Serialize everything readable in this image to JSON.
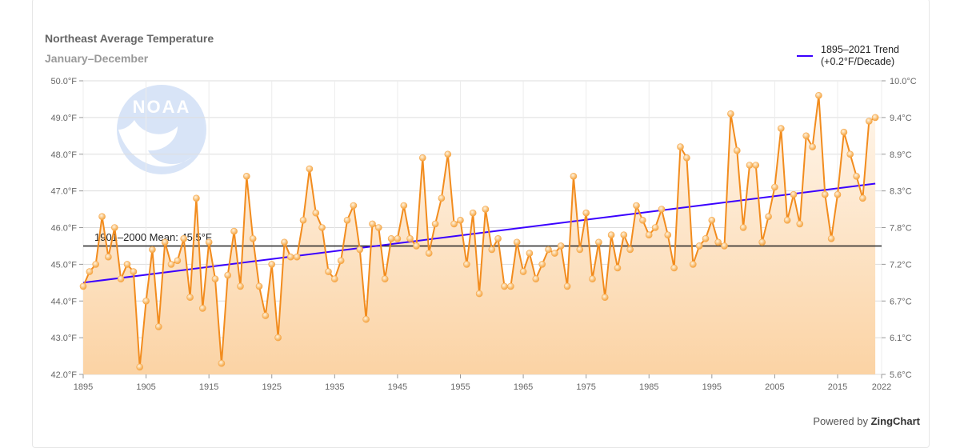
{
  "title": "Northeast Average Temperature",
  "subtitle": "January–December",
  "legend": {
    "line1": "1895–2021 Trend",
    "line2": "(+0.2°F/Decade)",
    "color": "#3a00ff"
  },
  "credit": {
    "prefix": "Powered by",
    "brand": "ZingChart"
  },
  "mean_label": "1901–2000 Mean: 45.5°F",
  "chart_data": {
    "type": "line",
    "title": "Northeast Average Temperature",
    "subtitle": "January–December",
    "x": [
      1895,
      1896,
      1897,
      1898,
      1899,
      1900,
      1901,
      1902,
      1903,
      1904,
      1905,
      1906,
      1907,
      1908,
      1909,
      1910,
      1911,
      1912,
      1913,
      1914,
      1915,
      1916,
      1917,
      1918,
      1919,
      1920,
      1921,
      1922,
      1923,
      1924,
      1925,
      1926,
      1927,
      1928,
      1929,
      1930,
      1931,
      1932,
      1933,
      1934,
      1935,
      1936,
      1937,
      1938,
      1939,
      1940,
      1941,
      1942,
      1943,
      1944,
      1945,
      1946,
      1947,
      1948,
      1949,
      1950,
      1951,
      1952,
      1953,
      1954,
      1955,
      1956,
      1957,
      1958,
      1959,
      1960,
      1961,
      1962,
      1963,
      1964,
      1965,
      1966,
      1967,
      1968,
      1969,
      1970,
      1971,
      1972,
      1973,
      1974,
      1975,
      1976,
      1977,
      1978,
      1979,
      1980,
      1981,
      1982,
      1983,
      1984,
      1985,
      1986,
      1987,
      1988,
      1989,
      1990,
      1991,
      1992,
      1993,
      1994,
      1995,
      1996,
      1997,
      1998,
      1999,
      2000,
      2001,
      2002,
      2003,
      2004,
      2005,
      2006,
      2007,
      2008,
      2009,
      2010,
      2011,
      2012,
      2013,
      2014,
      2015,
      2016,
      2017,
      2018,
      2019,
      2020,
      2021
    ],
    "series": [
      {
        "name": "",
        "color": "#f7941d",
        "values": [
          44.4,
          44.8,
          45.0,
          46.3,
          45.2,
          46.0,
          44.6,
          45.0,
          44.8,
          42.2,
          44.0,
          45.4,
          43.3,
          45.6,
          45.0,
          45.1,
          45.7,
          44.1,
          46.8,
          43.8,
          45.6,
          44.6,
          42.3,
          44.7,
          45.9,
          44.4,
          47.4,
          45.7,
          44.4,
          43.6,
          45.0,
          43.0,
          45.6,
          45.2,
          45.2,
          46.2,
          47.6,
          46.4,
          46.0,
          44.8,
          44.6,
          45.1,
          46.2,
          46.6,
          45.4,
          43.5,
          46.1,
          46.0,
          44.6,
          45.7,
          45.7,
          46.6,
          45.7,
          45.5,
          47.9,
          45.3,
          46.1,
          46.8,
          48.0,
          46.1,
          46.2,
          45.0,
          46.4,
          44.2,
          46.5,
          45.4,
          45.7,
          44.4,
          44.4,
          45.6,
          44.8,
          45.3,
          44.6,
          45.0,
          45.4,
          45.3,
          45.5,
          44.4,
          47.4,
          45.4,
          46.4,
          44.6,
          45.6,
          44.1,
          45.8,
          44.9,
          45.8,
          45.4,
          46.6,
          46.2,
          45.8,
          46.0,
          46.5,
          45.8,
          44.9,
          48.2,
          47.9,
          45.0,
          45.5,
          45.7,
          46.2,
          45.6,
          45.5,
          49.1,
          48.1,
          46.0,
          47.7,
          47.7,
          45.6,
          46.3,
          47.1,
          48.7,
          46.2,
          46.9,
          46.1,
          48.5,
          48.2,
          49.6,
          46.9,
          45.7,
          46.9,
          48.6,
          48.0,
          47.4,
          46.8,
          48.9,
          49.0
        ]
      }
    ],
    "trend": {
      "label": "1895–2021 Trend (+0.2°F/Decade)",
      "from": [
        1895,
        44.5
      ],
      "to": [
        2021,
        47.2
      ]
    },
    "mean": 45.5,
    "xlim": [
      1895,
      2022
    ],
    "ylim": [
      42,
      50
    ],
    "x_ticks": [
      1895,
      1905,
      1915,
      1925,
      1935,
      1945,
      1955,
      1965,
      1975,
      1985,
      1995,
      2005,
      2015,
      2022
    ],
    "y_ticks_left": [
      "42.0°F",
      "43.0°F",
      "44.0°F",
      "45.0°F",
      "46.0°F",
      "47.0°F",
      "48.0°F",
      "49.0°F",
      "50.0°F"
    ],
    "y_ticks_right": [
      "5.6°C",
      "6.1°C",
      "6.7°C",
      "7.2°C",
      "7.8°C",
      "8.3°C",
      "8.9°C",
      "9.4°C",
      "10.0°C"
    ],
    "grid": true,
    "legend_position": "top-right"
  }
}
